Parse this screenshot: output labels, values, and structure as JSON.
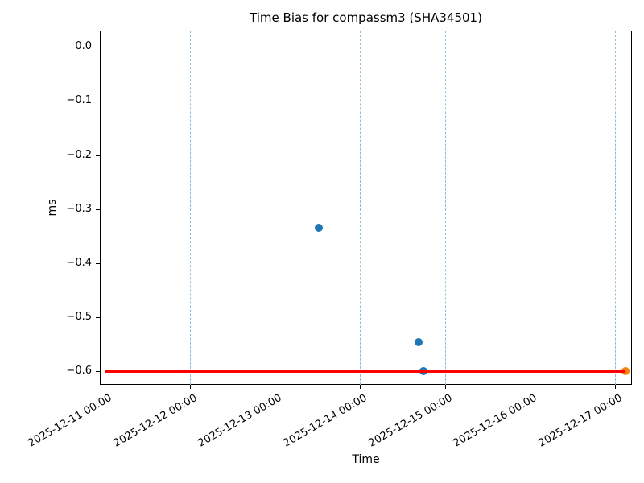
{
  "chart_data": {
    "type": "scatter",
    "title": "Time Bias for compassm3 (SHA34501)",
    "xlabel": "Time",
    "ylabel": "ms",
    "legend": "none",
    "grid": "vertical-dashed",
    "colors": {
      "observed_points": "#1f77b4",
      "latest_point": "#ff7f0e",
      "bias_level_line": "#ff0000",
      "zero_line": "#000000",
      "gridline": "#8fbbd9",
      "spine": "#000000"
    },
    "x_axis": {
      "epoch": "2025-12-11 00:00",
      "unit": "hours since epoch",
      "lim_hours": [
        -1.4,
        148.8
      ],
      "ticks": [
        {
          "hours": 0,
          "label": "2025-12-11 00:00"
        },
        {
          "hours": 24,
          "label": "2025-12-12 00:00"
        },
        {
          "hours": 48,
          "label": "2025-12-13 00:00"
        },
        {
          "hours": 72,
          "label": "2025-12-14 00:00"
        },
        {
          "hours": 96,
          "label": "2025-12-15 00:00"
        },
        {
          "hours": 120,
          "label": "2025-12-16 00:00"
        },
        {
          "hours": 144,
          "label": "2025-12-17 00:00"
        }
      ],
      "tick_rotation_deg": 30
    },
    "y_axis": {
      "lim": [
        -0.625,
        0.03
      ],
      "ticks": [
        {
          "value": 0.0,
          "label": "0.0"
        },
        {
          "value": -0.1,
          "label": "−0.1"
        },
        {
          "value": -0.2,
          "label": "−0.2"
        },
        {
          "value": -0.3,
          "label": "−0.3"
        },
        {
          "value": -0.4,
          "label": "−0.4"
        },
        {
          "value": -0.5,
          "label": "−0.5"
        },
        {
          "value": -0.6,
          "label": "−0.6"
        }
      ]
    },
    "series": [
      {
        "name": "observed-bias",
        "type": "scatter",
        "color": "#1f77b4",
        "points": [
          {
            "time": "2025-12-13 12:30",
            "hours": 60.5,
            "ms": -0.334
          },
          {
            "time": "2025-12-14 16:30",
            "hours": 88.5,
            "ms": -0.546
          },
          {
            "time": "2025-12-14 18:00",
            "hours": 90.0,
            "ms": -0.6
          }
        ]
      },
      {
        "name": "latest-bias",
        "type": "scatter",
        "color": "#ff7f0e",
        "points": [
          {
            "time": "2025-12-17 03:00",
            "hours": 147.0,
            "ms": -0.6
          }
        ]
      },
      {
        "name": "bias-level",
        "type": "hline",
        "color": "#ff0000",
        "ms": -0.6,
        "from_hours": 0,
        "to_hours": 147.0,
        "linewidth": 3
      }
    ],
    "reference_lines": [
      {
        "name": "zero-line",
        "ms": 0.0,
        "color": "#000000",
        "extent": "full-width",
        "linewidth": 1
      }
    ]
  }
}
